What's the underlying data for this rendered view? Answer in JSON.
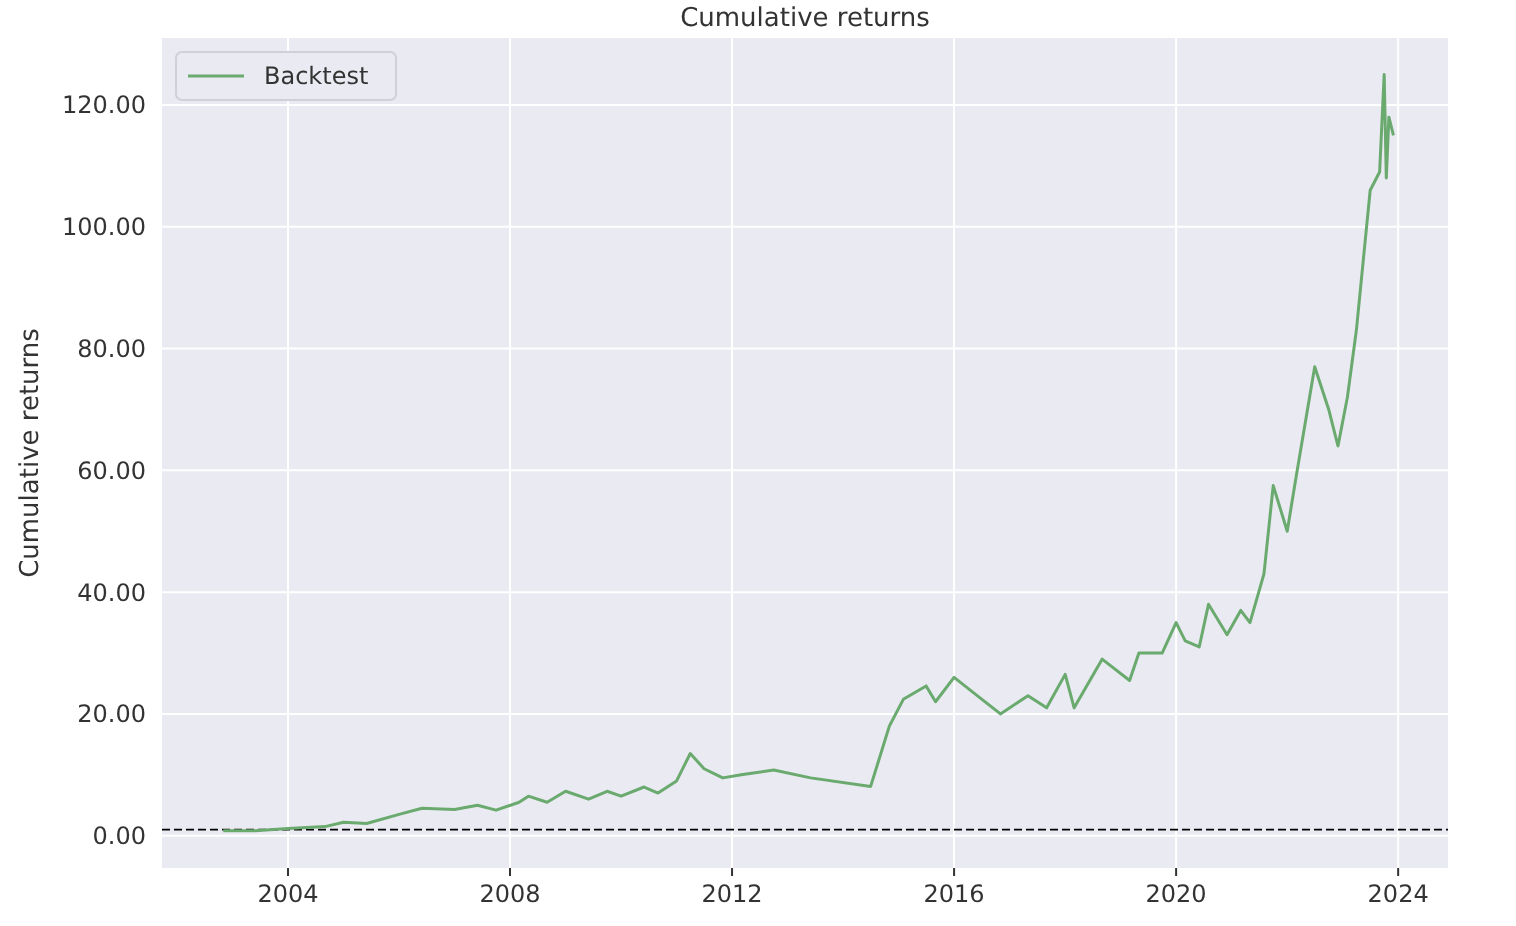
{
  "chart_data": {
    "type": "line",
    "title": "Cumulative returns",
    "ylabel": "Cumulative returns",
    "x": [
      "2002-11",
      "2003-06",
      "2004-01",
      "2004-09",
      "2005-01",
      "2005-06",
      "2006-01",
      "2006-06",
      "2007-01",
      "2007-06",
      "2007-10",
      "2008-03",
      "2008-05",
      "2008-09",
      "2009-01",
      "2009-06",
      "2009-10",
      "2010-01",
      "2010-06",
      "2010-09",
      "2011-01",
      "2011-04",
      "2011-07",
      "2011-11",
      "2012-03",
      "2012-10",
      "2013-06",
      "2014-07",
      "2014-11",
      "2015-02",
      "2015-07",
      "2015-09",
      "2016-01",
      "2016-06",
      "2016-11",
      "2017-05",
      "2017-09",
      "2018-01",
      "2018-03",
      "2018-09",
      "2019-03",
      "2019-05",
      "2019-10",
      "2020-01",
      "2020-03",
      "2020-06",
      "2020-08",
      "2020-12",
      "2021-03",
      "2021-05",
      "2021-08",
      "2021-10",
      "2022-01",
      "2022-03",
      "2022-07",
      "2022-10",
      "2022-12",
      "2023-02",
      "2023-04",
      "2023-07",
      "2023-09",
      "2023-10",
      "2023-10-15",
      "2023-11",
      "2023-12"
    ],
    "series": [
      {
        "name": "Backtest",
        "color": "#6aaa6e",
        "values": [
          0.8,
          0.8,
          1.2,
          1.5,
          2.2,
          2.0,
          3.5,
          4.5,
          4.3,
          5.0,
          4.2,
          5.5,
          6.5,
          5.5,
          7.3,
          6.0,
          7.3,
          6.5,
          8.0,
          7.0,
          9.0,
          13.5,
          11.0,
          9.5,
          10.0,
          10.8,
          9.5,
          8.1,
          18,
          22.4,
          24.6,
          22,
          26,
          23,
          20,
          23,
          21,
          26.5,
          21,
          29,
          25.5,
          30,
          30,
          35,
          32,
          31,
          38,
          33,
          37,
          35,
          43,
          57.5,
          50,
          59,
          77,
          70,
          64,
          72,
          83,
          106,
          109,
          125,
          108,
          118,
          115
        ]
      }
    ],
    "xlim": [
      "2001-09-24",
      "2024-11-24"
    ],
    "xticks": [
      {
        "value": "2004-01-01",
        "label": "2004"
      },
      {
        "value": "2008-01-01",
        "label": "2008"
      },
      {
        "value": "2012-01-01",
        "label": "2012"
      },
      {
        "value": "2016-01-01",
        "label": "2016"
      },
      {
        "value": "2020-01-01",
        "label": "2020"
      },
      {
        "value": "2024-01-01",
        "label": "2024"
      }
    ],
    "ylim": [
      -5.3,
      131
    ],
    "yticks": [
      {
        "value": 0,
        "label": "0.00"
      },
      {
        "value": 20,
        "label": "20.00"
      },
      {
        "value": 40,
        "label": "40.00"
      },
      {
        "value": 60,
        "label": "60.00"
      },
      {
        "value": 80,
        "label": "80.00"
      },
      {
        "value": 100,
        "label": "100.00"
      },
      {
        "value": 120,
        "label": "120.00"
      }
    ],
    "ref_lines": [
      {
        "axis": "y",
        "value": 1,
        "color": "#000000",
        "line_style": "dashed"
      }
    ],
    "grid": true,
    "legend": "top left"
  }
}
